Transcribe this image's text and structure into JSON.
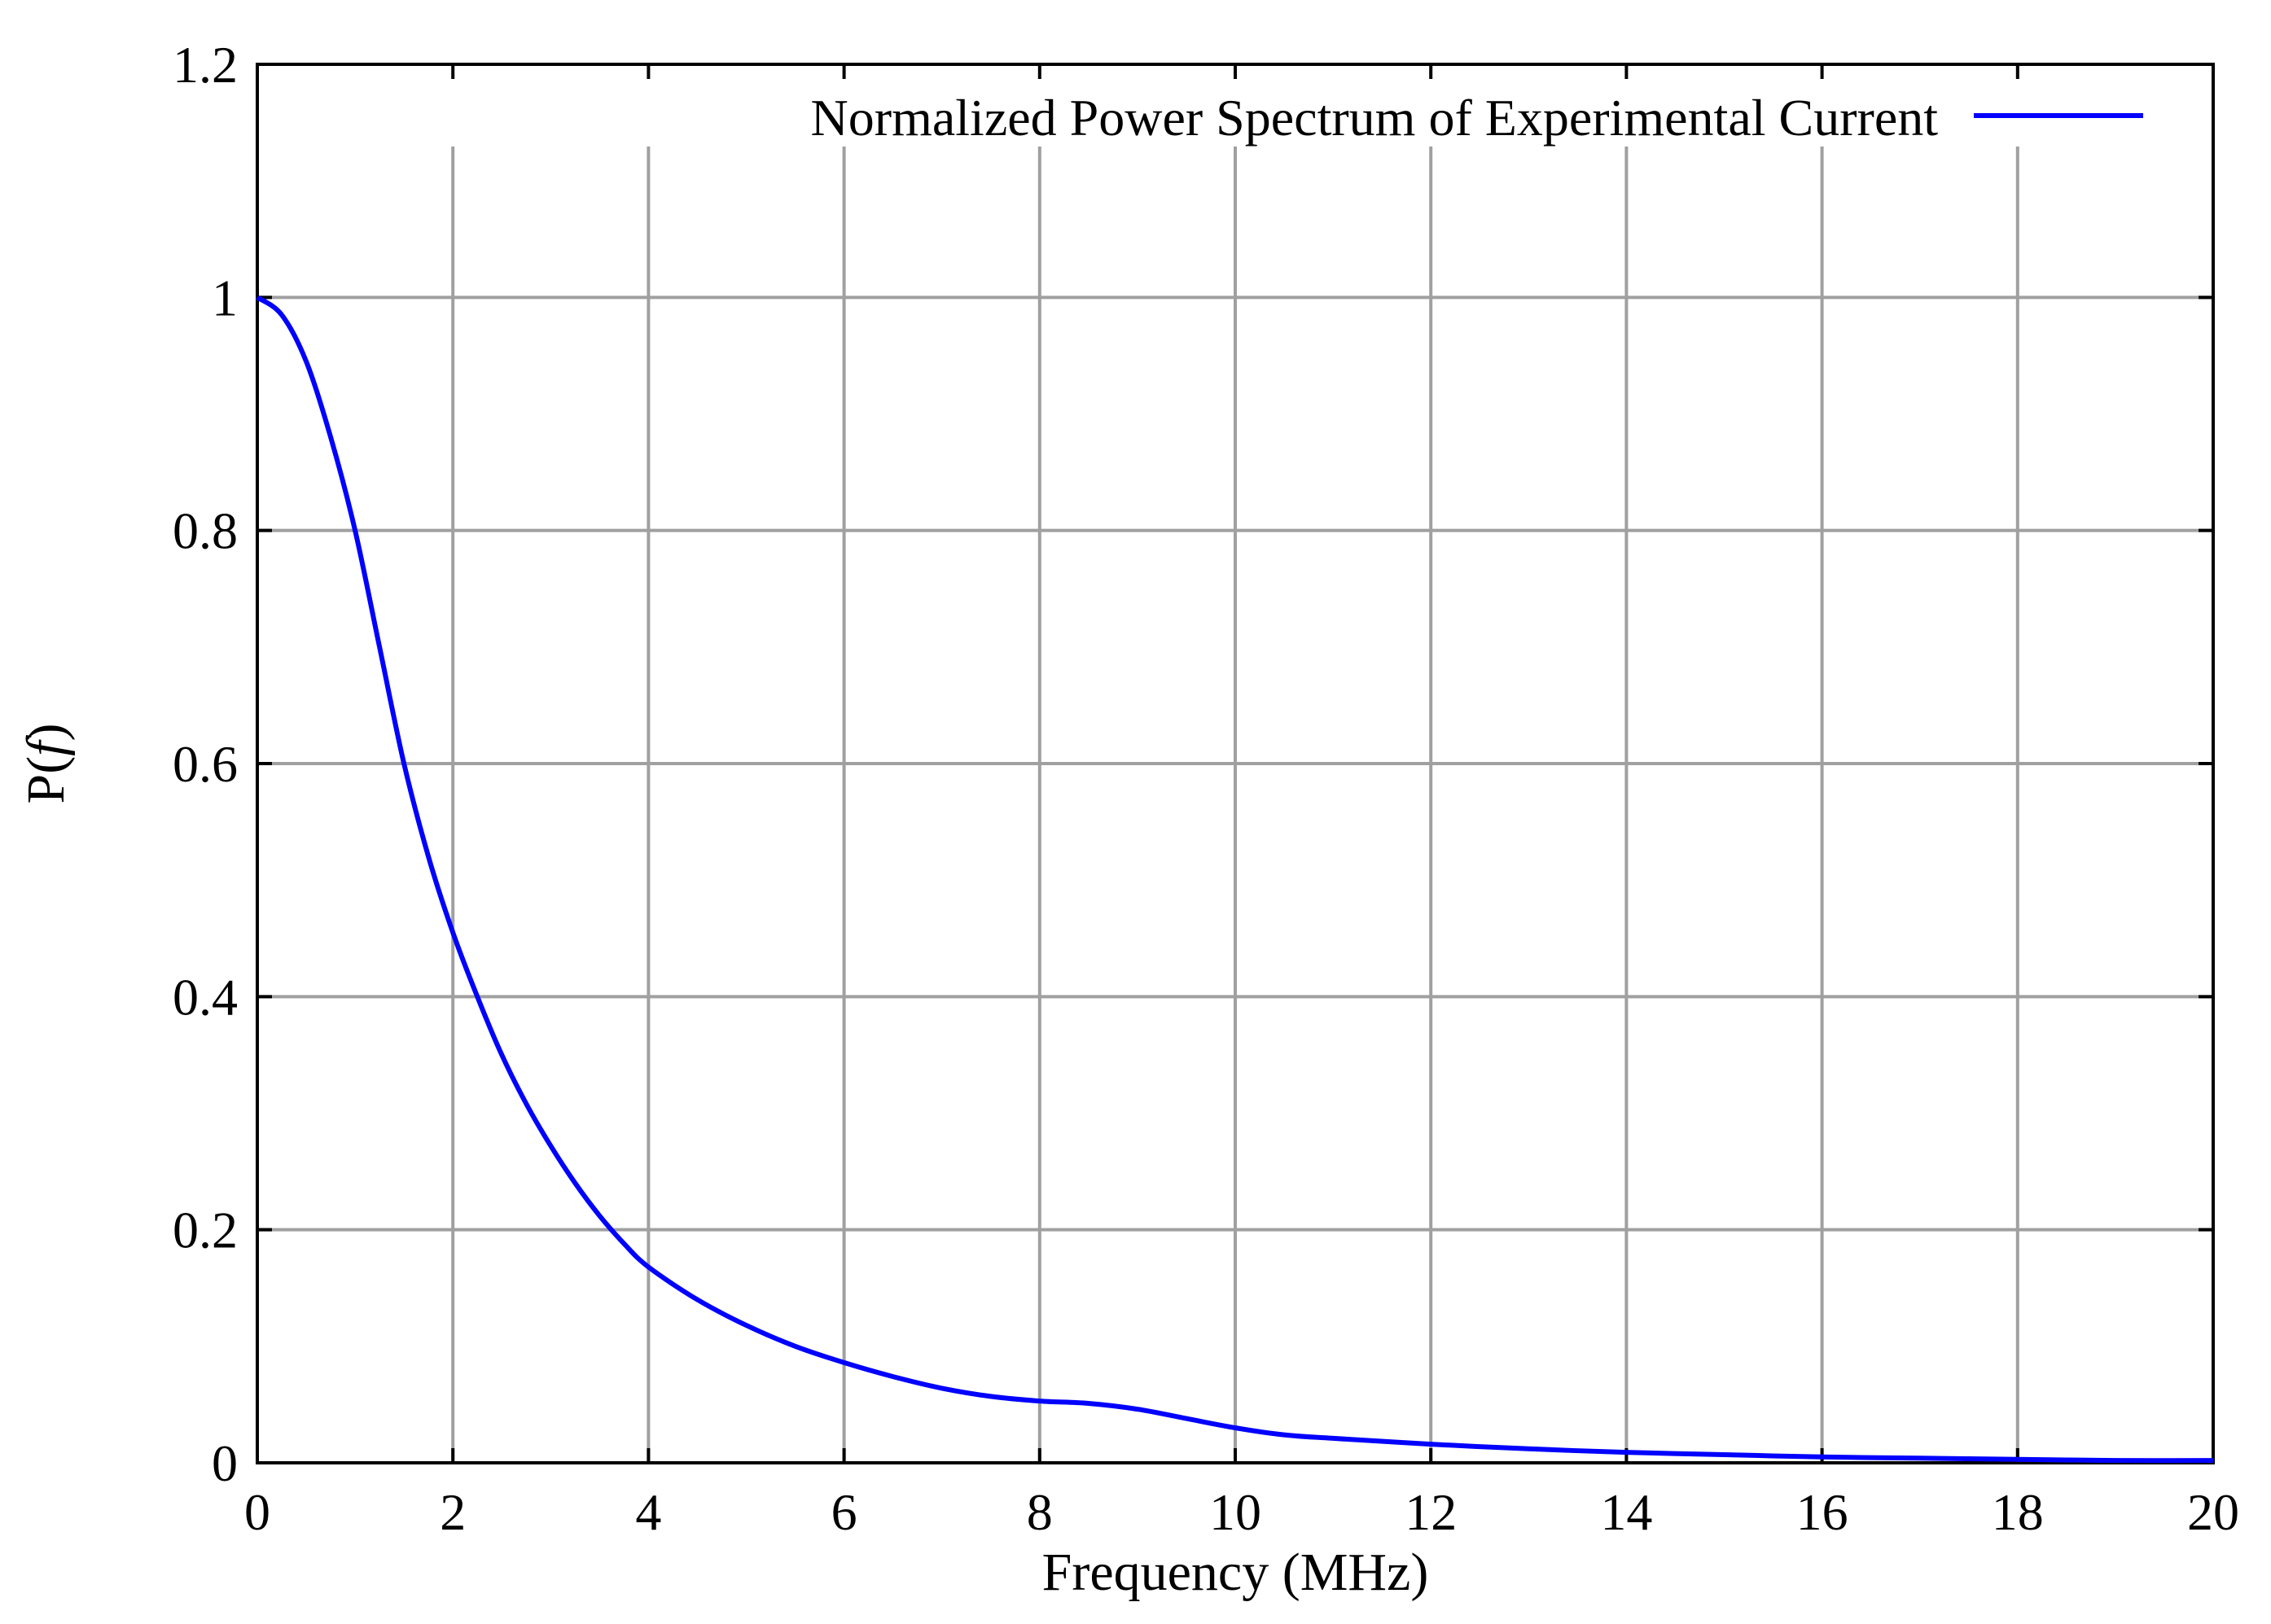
{
  "chart_data": {
    "type": "line",
    "title": "",
    "xlabel": "Frequency (MHz)",
    "ylabel_prefix": "P(",
    "ylabel_var": "f",
    "ylabel_suffix": ")",
    "xlim": [
      0,
      20
    ],
    "ylim": [
      0,
      1.2
    ],
    "grid": true,
    "legend_position": "top-right",
    "x_ticks": [
      0,
      2,
      4,
      6,
      8,
      10,
      12,
      14,
      16,
      18,
      20
    ],
    "x_tick_labels": [
      "0",
      "2",
      "4",
      "6",
      "8",
      "10",
      "12",
      "14",
      "16",
      "18",
      "20"
    ],
    "y_ticks": [
      0,
      0.2,
      0.4,
      0.6,
      0.8,
      1,
      1.2
    ],
    "y_tick_labels": [
      "0",
      "0.2",
      "0.4",
      "0.6",
      "0.8",
      "1",
      "1.2"
    ],
    "series": [
      {
        "name": "Normalized Power Spectrum of Experimental Current",
        "color": "#0000ff",
        "x": [
          0,
          0.25,
          0.5,
          0.75,
          1.0,
          1.25,
          1.5,
          1.75,
          2.0,
          2.25,
          2.5,
          2.75,
          3.0,
          3.25,
          3.5,
          3.75,
          4.0,
          4.5,
          5.0,
          5.5,
          6.0,
          6.5,
          7.0,
          7.5,
          8.0,
          8.5,
          9.0,
          9.5,
          10.0,
          10.5,
          11.0,
          12.0,
          13.0,
          14.0,
          15.0,
          16.0,
          17.0,
          18.0,
          19.0,
          20.0
        ],
        "y": [
          1.0,
          0.985,
          0.945,
          0.88,
          0.8,
          0.7,
          0.6,
          0.52,
          0.455,
          0.4,
          0.35,
          0.308,
          0.272,
          0.24,
          0.212,
          0.188,
          0.168,
          0.14,
          0.118,
          0.1,
          0.086,
          0.074,
          0.064,
          0.057,
          0.053,
          0.051,
          0.046,
          0.038,
          0.03,
          0.024,
          0.021,
          0.016,
          0.012,
          0.009,
          0.007,
          0.005,
          0.004,
          0.003,
          0.002,
          0.002
        ]
      }
    ]
  }
}
